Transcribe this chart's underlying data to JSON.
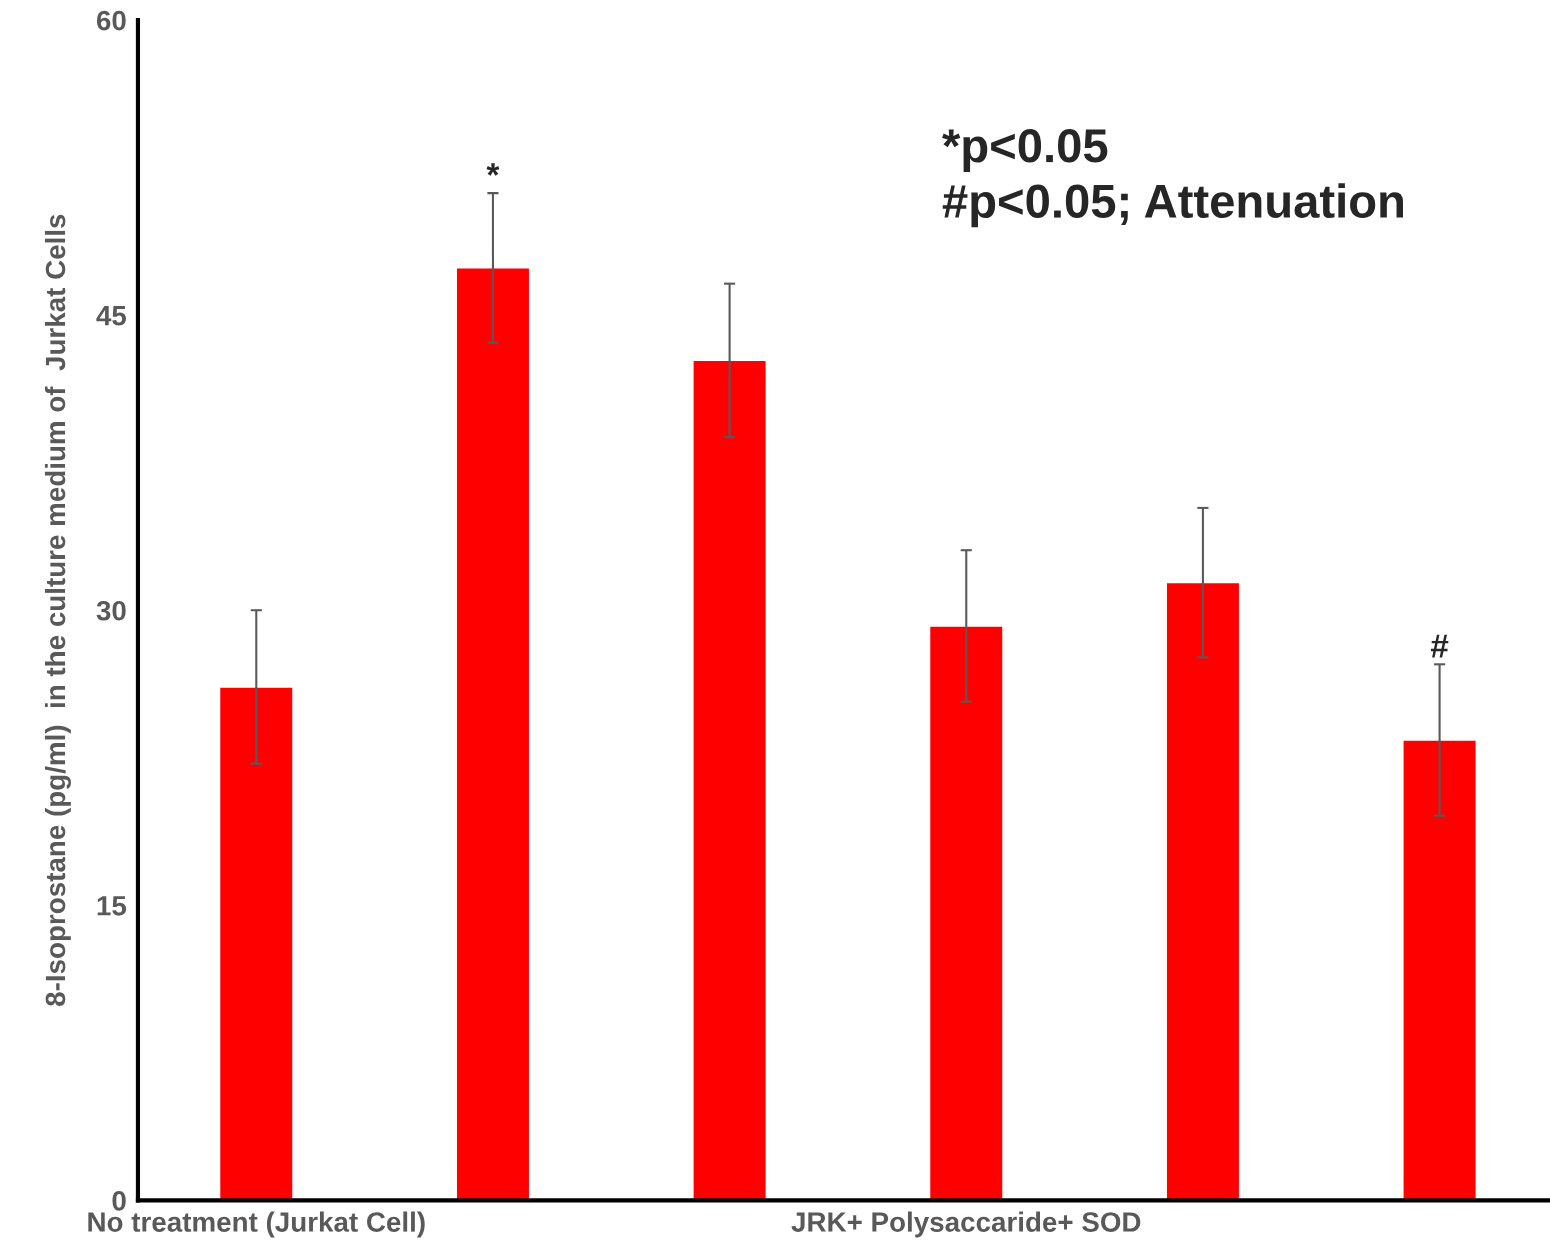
{
  "chart_data": {
    "type": "bar",
    "ylabel": "8-Isoprostane (pg/ml)  in the culture medium of  Jurkat Cells",
    "categories": [
      "No treatment (Jurkat Cell)",
      null,
      null,
      "JRK+ Polysaccaride+ SOD",
      null,
      null
    ],
    "values": [
      26.1,
      47.4,
      42.7,
      29.2,
      31.4,
      23.4
    ],
    "errors": [
      3.9,
      3.8,
      3.9,
      3.85,
      3.8,
      3.85
    ],
    "value_labels": [
      null,
      "*",
      null,
      null,
      null,
      "#"
    ],
    "color": "#ff0000",
    "ylim": [
      0,
      60
    ],
    "yticks": [
      0,
      15,
      30,
      45,
      60
    ],
    "grid": false,
    "annotations": [
      "*p<0.05",
      "#p<0.05; Attenuation"
    ]
  }
}
